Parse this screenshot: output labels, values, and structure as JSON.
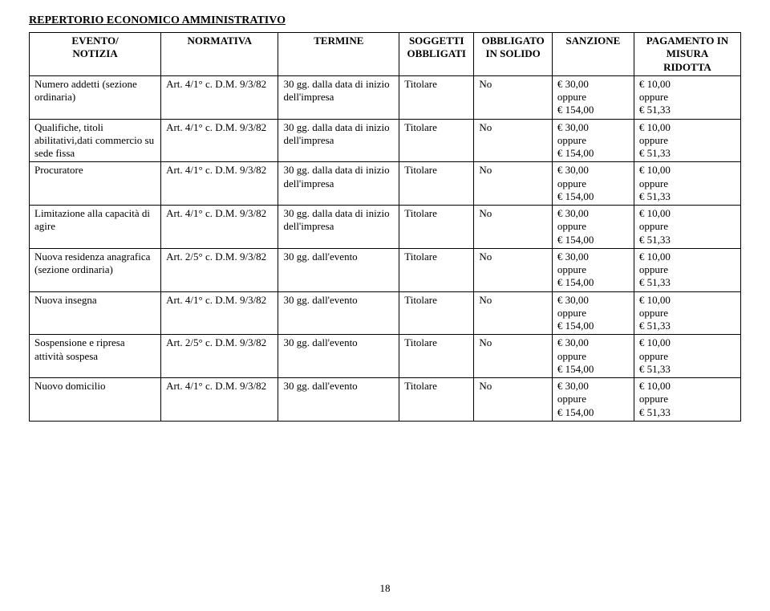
{
  "title": "REPERTORIO ECONOMICO AMMINISTRATIVO",
  "page_number": "18",
  "columns": {
    "c1": "EVENTO/\nNOTIZIA",
    "c2": "NORMATIVA",
    "c3": "TERMINE",
    "c4": "SOGGETTI\nOBBLIGATI",
    "c5": "OBBLIGATO\nIN SOLIDO",
    "c6": "SANZIONE",
    "c7": "PAGAMENTO IN\nMISURA\nRIDOTTA"
  },
  "rows": [
    {
      "evento": "Numero addetti (sezione ordinaria)",
      "normativa": "Art. 4/1° c. D.M. 9/3/82",
      "termine": "30 gg. dalla data di inizio dell'impresa",
      "soggetti": "Titolare",
      "solido": "No",
      "sanzione": "€ 30,00\noppure\n€ 154,00",
      "pagamento": "€ 10,00\noppure\n€ 51,33"
    },
    {
      "evento": "Qualifiche, titoli abilitativi,dati commercio su sede fissa",
      "normativa": "Art. 4/1° c. D.M. 9/3/82",
      "termine": "30 gg. dalla data di inizio dell'impresa",
      "soggetti": "Titolare",
      "solido": "No",
      "sanzione": "€ 30,00\noppure\n€ 154,00",
      "pagamento": "€ 10,00\noppure\n€ 51,33"
    },
    {
      "evento": "Procuratore",
      "normativa": "Art. 4/1° c. D.M. 9/3/82",
      "termine": "30 gg. dalla data di inizio dell'impresa",
      "soggetti": "Titolare",
      "solido": "No",
      "sanzione": "€ 30,00\noppure\n€ 154,00",
      "pagamento": "€ 10,00\noppure\n€ 51,33"
    },
    {
      "evento": "Limitazione alla capacità di agire",
      "normativa": "Art. 4/1° c. D.M. 9/3/82",
      "termine": "30 gg. dalla data di inizio dell'impresa",
      "soggetti": "Titolare",
      "solido": "No",
      "sanzione": "€ 30,00\noppure\n€ 154,00",
      "pagamento": "€ 10,00\noppure\n€ 51,33"
    },
    {
      "evento": "Nuova residenza anagrafica (sezione ordinaria)",
      "normativa": "Art. 2/5° c. D.M. 9/3/82",
      "termine": "30 gg. dall'evento",
      "soggetti": "Titolare",
      "solido": "No",
      "sanzione": "€ 30,00\noppure\n€ 154,00",
      "pagamento": "€ 10,00\noppure\n€ 51,33"
    },
    {
      "evento": "Nuova insegna",
      "normativa": "Art. 4/1° c. D.M. 9/3/82",
      "termine": "30 gg. dall'evento",
      "soggetti": "Titolare",
      "solido": "No",
      "sanzione": "€ 30,00\noppure\n€ 154,00",
      "pagamento": "€ 10,00\noppure\n€ 51,33"
    },
    {
      "evento": "Sospensione e ripresa attività sospesa",
      "normativa": "Art. 2/5° c. D.M. 9/3/82",
      "termine": "30 gg. dall'evento",
      "soggetti": "Titolare",
      "solido": "No",
      "sanzione": "€ 30,00\noppure\n€ 154,00",
      "pagamento": "€ 10,00\noppure\n€ 51,33"
    },
    {
      "evento": "Nuovo domicilio",
      "normativa": "Art. 4/1° c. D.M. 9/3/82",
      "termine": "30 gg. dall'evento",
      "soggetti": "Titolare",
      "solido": "No",
      "sanzione": "€ 30,00\noppure\n€ 154,00",
      "pagamento": "€ 10,00\noppure\n€ 51,33"
    }
  ]
}
